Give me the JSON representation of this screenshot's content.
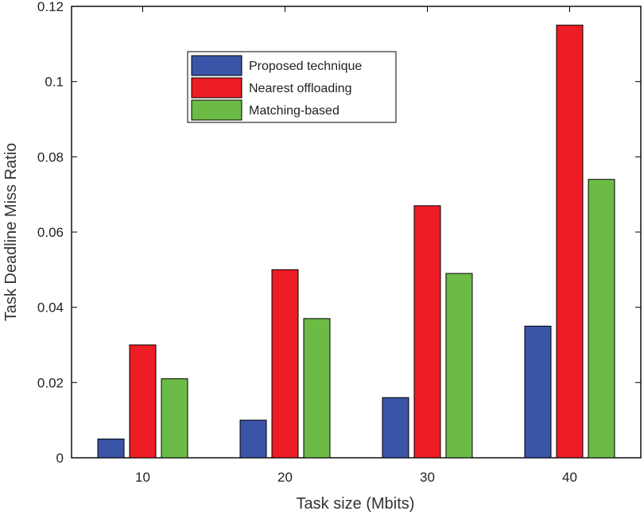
{
  "chart_data": {
    "type": "bar",
    "title": "",
    "xlabel": "Task size (Mbits)",
    "ylabel": "Task Deadline Miss Ratio",
    "categories": [
      "10",
      "20",
      "30",
      "40"
    ],
    "ylim": [
      0,
      0.12
    ],
    "yticks": [
      0,
      0.02,
      0.04,
      0.06,
      0.08,
      0.1,
      0.12
    ],
    "ytick_labels": [
      "0",
      "0.02",
      "0.04",
      "0.06",
      "0.08",
      "0.1",
      "0.12"
    ],
    "grid": false,
    "legend_position": "top-left inside",
    "series": [
      {
        "name": "Proposed technique",
        "color": "#3a54a8",
        "values": [
          0.005,
          0.01,
          0.016,
          0.035
        ]
      },
      {
        "name": "Nearest offloading",
        "color": "#ee1c24",
        "values": [
          0.03,
          0.05,
          0.067,
          0.115
        ]
      },
      {
        "name": "Matching-based",
        "color": "#6cbb46",
        "values": [
          0.021,
          0.037,
          0.049,
          0.074
        ]
      }
    ]
  }
}
